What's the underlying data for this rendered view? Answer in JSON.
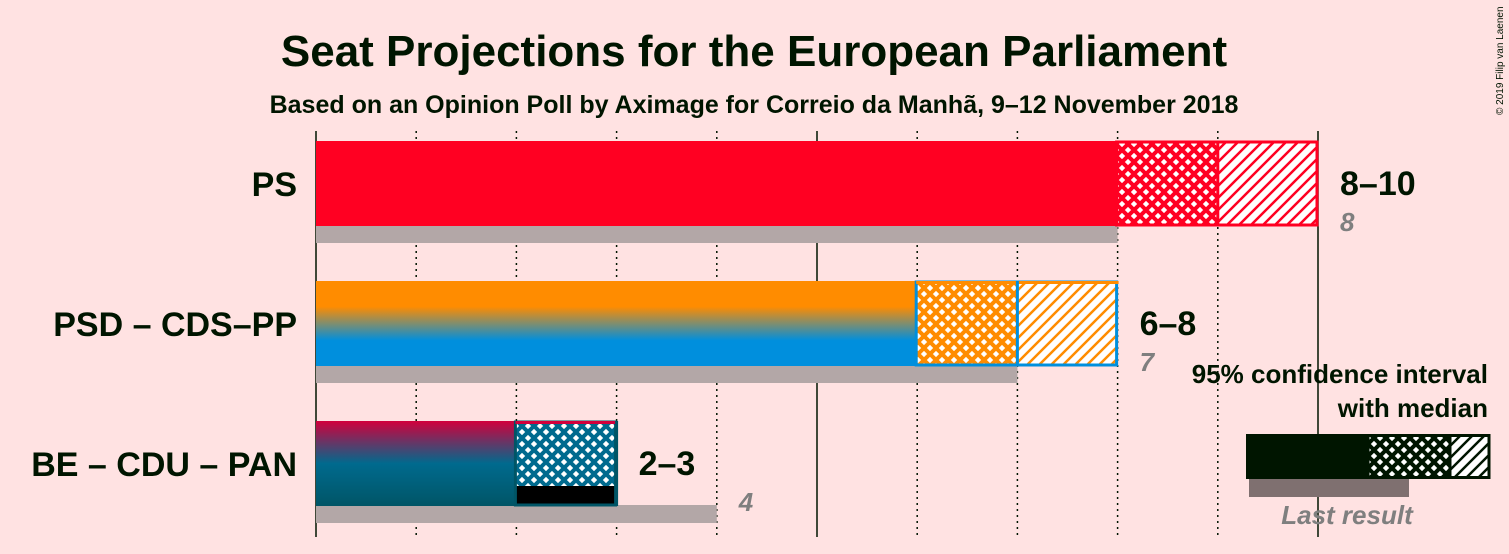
{
  "title": "Seat Projections for the European Parliament",
  "subtitle": "Based on an Opinion Poll by Aximage for Correio da Manhã, 9–12 November 2018",
  "copyright": "© 2019 Filip van Laenen",
  "chart_data": {
    "type": "bar",
    "orientation": "horizontal",
    "x_range": [
      0,
      10
    ],
    "major_ticks": [
      0,
      5,
      10
    ],
    "minor_ticks": [
      1,
      2,
      3,
      4,
      6,
      7,
      8,
      9
    ],
    "series": [
      {
        "name": "PS",
        "low": 8,
        "high": 10,
        "median": 9,
        "range_label": "8–10",
        "last_result": 8,
        "last_label": "8",
        "colors": [
          "#FF0022"
        ]
      },
      {
        "name": "PSD – CDS–PP",
        "low": 6,
        "high": 8,
        "median": 7,
        "range_label": "6–8",
        "last_result": 7,
        "last_label": "7",
        "colors": [
          "#FF8C00",
          "#008FDD"
        ]
      },
      {
        "name": "BE – CDU – PAN",
        "low": 2,
        "high": 3,
        "median": 3,
        "range_label": "2–3",
        "last_result": 4,
        "last_label": "4",
        "colors": [
          "#D1003C",
          "#006A8E",
          "#005566"
        ]
      }
    ]
  },
  "legend": {
    "line1": "95% confidence interval",
    "line2": "with median",
    "last_result": "Last result",
    "color": "#001500"
  }
}
